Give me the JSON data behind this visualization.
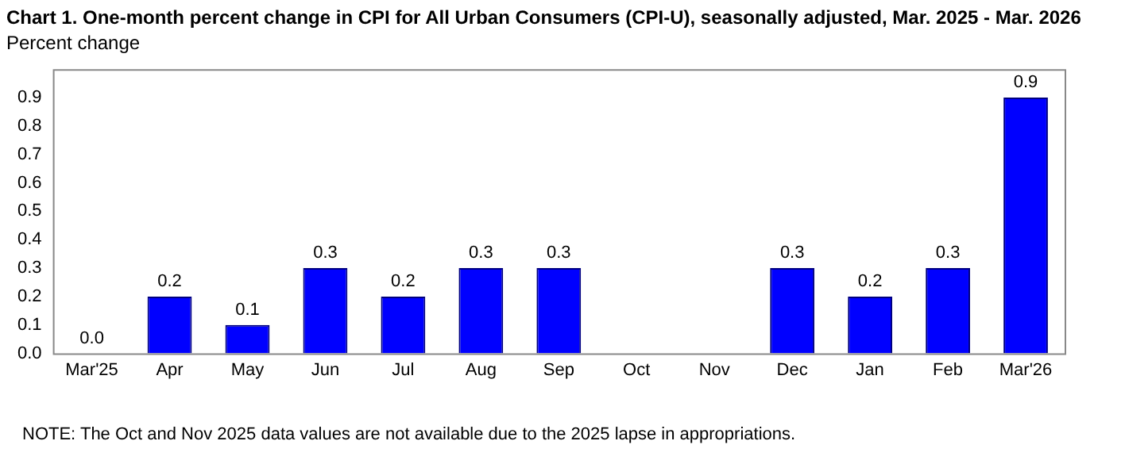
{
  "chart_data": {
    "type": "bar",
    "title": "Chart 1. One-month percent change in CPI for All Urban Consumers (CPI-U), seasonally adjusted, Mar. 2025 - Mar. 2026",
    "ylabel": "Percent change",
    "categories": [
      "Mar'25",
      "Apr",
      "May",
      "Jun",
      "Jul",
      "Aug",
      "Sep",
      "Oct",
      "Nov",
      "Dec",
      "Jan",
      "Feb",
      "Mar'26"
    ],
    "values": [
      0.0,
      0.2,
      0.1,
      0.3,
      0.2,
      0.3,
      0.3,
      null,
      null,
      0.3,
      0.2,
      0.3,
      0.9
    ],
    "value_labels": [
      "0.0",
      "0.2",
      "0.1",
      "0.3",
      "0.2",
      "0.3",
      "0.3",
      null,
      null,
      "0.3",
      "0.2",
      "0.3",
      "0.9"
    ],
    "color": "#0000ff",
    "ylim": [
      0,
      1
    ],
    "yticks": [
      {
        "value": 0,
        "label": "0.0"
      },
      {
        "value": 0.1,
        "label": "0.1"
      },
      {
        "value": 0.2,
        "label": "0.2"
      },
      {
        "value": 0.3,
        "label": "0.3"
      },
      {
        "value": 0.4,
        "label": "0.4"
      },
      {
        "value": 0.5,
        "label": "0.5"
      },
      {
        "value": 0.6,
        "label": "0.6"
      },
      {
        "value": 0.7,
        "label": "0.7"
      },
      {
        "value": 0.8,
        "label": "0.8"
      },
      {
        "value": 0.9,
        "label": "0.9"
      }
    ],
    "grid": false,
    "legend": false,
    "annotations": [
      "NOTE: The Oct and Nov 2025 data values are not available due to the 2025 lapse in appropriations."
    ]
  }
}
